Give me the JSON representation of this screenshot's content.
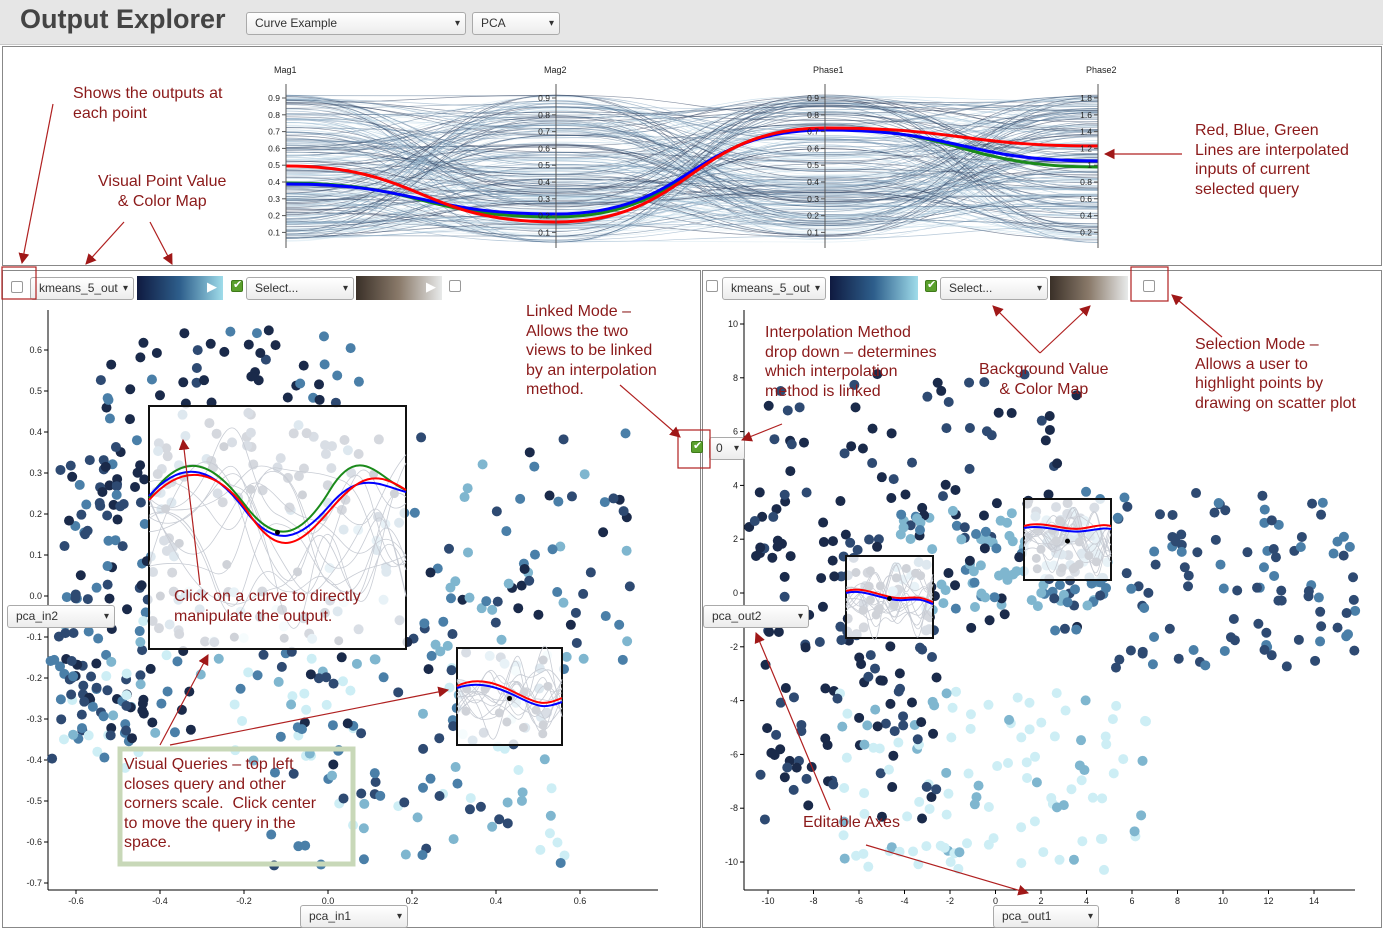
{
  "app": {
    "title": "Output Explorer",
    "dataset_select": "Curve Example",
    "method_select": "PCA"
  },
  "parallel": {
    "axes": [
      "Mag1",
      "Mag2",
      "Phase1",
      "Phase2"
    ],
    "ticks_a": [
      "0.9",
      "0.8",
      "0.7",
      "0.6",
      "0.5",
      "0.4",
      "0.3",
      "0.2",
      "0.1"
    ],
    "ticks_b": [
      "1.8",
      "1.6",
      "1.4",
      "1.2",
      "1",
      "0.8",
      "0.6",
      "0.4",
      "0.2"
    ]
  },
  "left": {
    "color_select": "kmeans_5_out",
    "bg_select": "Select...",
    "x_axis_select": "pca_in1",
    "y_axis_select": "pca_in2",
    "x_ticks": [
      "-0.6",
      "-0.4",
      "-0.2",
      "0.0",
      "0.2",
      "0.4",
      "0.6"
    ],
    "y_ticks": [
      "0.6",
      "0.5",
      "0.4",
      "0.3",
      "0.2",
      "0.1",
      "0.0",
      "-0.1",
      "-0.2",
      "-0.3",
      "-0.4",
      "-0.5",
      "-0.6",
      "-0.7"
    ]
  },
  "right": {
    "color_select": "kmeans_5_out",
    "bg_select": "Select...",
    "x_axis_select": "pca_out1",
    "y_axis_select": "pca_out2",
    "x_ticks": [
      "-10",
      "-8",
      "-6",
      "-4",
      "-2",
      "0",
      "2",
      "4",
      "6",
      "8",
      "10",
      "12",
      "14"
    ],
    "y_ticks": [
      "10",
      "8",
      "6",
      "4",
      "2",
      "0",
      "-2",
      "-4",
      "-6",
      "-8",
      "-10"
    ]
  },
  "interp_select": "0",
  "annotations": {
    "outputs": "Shows the outputs at\neach point",
    "visual_point": "Visual Point Value\n& Color Map",
    "rgb_lines": "Red, Blue, Green\nLines are interpolated\ninputs of current\nselected query",
    "linked_mode": "Linked Mode –\nAllows the two\nviews to be linked\nby an interpolation\nmethod.",
    "interp_method": "Interpolation Method\ndrop down – determines\nwhich interpolation\nmethod is linked",
    "background": "Background Value\n& Color Map",
    "selection_mode": "Selection Mode –\nAllows a user to\nhighlight points by\ndrawing on scatter plot",
    "click_curve": "Click on a curve to directly\nmanipulate the output.",
    "visual_queries": "Visual Queries – top left\ncloses query and other\ncorners scale.  Click center\nto move the query in the\nspace.",
    "editable_axes": "Editable Axes"
  },
  "colors": {
    "annotation": "#8b1a1a",
    "red_curve": "#ff0000",
    "blue_curve": "#0000ff",
    "green_curve": "#1a8a1a",
    "point_dark": "#1a2a4a",
    "point_mid": "#4a7fa8",
    "point_light": "#cdeef5"
  }
}
